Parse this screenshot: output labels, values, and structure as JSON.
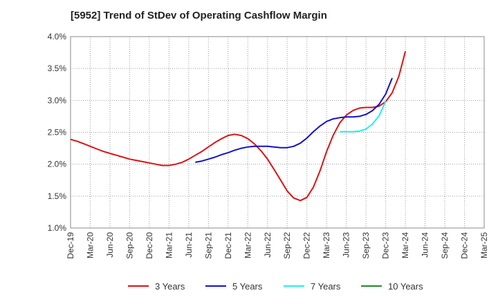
{
  "chart_data": {
    "type": "line",
    "title": "[5952]  Trend of StDev of Operating Cashflow Margin",
    "xlabel": "",
    "ylabel": "",
    "x_categories": [
      "Dec-19",
      "Mar-20",
      "Jun-20",
      "Sep-20",
      "Dec-20",
      "Mar-21",
      "Jun-21",
      "Sep-21",
      "Dec-21",
      "Mar-22",
      "Jun-22",
      "Sep-22",
      "Dec-22",
      "Mar-23",
      "Jun-23",
      "Sep-23",
      "Dec-23",
      "Mar-24",
      "Jun-24",
      "Sep-24",
      "Dec-24",
      "Mar-25"
    ],
    "ylim": [
      1.0,
      4.0
    ],
    "y_ticks": [
      1.0,
      1.5,
      2.0,
      2.5,
      3.0,
      3.5,
      4.0
    ],
    "y_tick_labels": [
      "1.0%",
      "1.5%",
      "2.0%",
      "2.5%",
      "3.0%",
      "3.5%",
      "4.0%"
    ],
    "grid": true,
    "legend_position": "bottom",
    "series": [
      {
        "name": "3 Years",
        "color": "#dd1111",
        "points": [
          [
            0,
            2.39
          ],
          [
            0.33,
            2.36
          ],
          [
            0.67,
            2.32
          ],
          [
            1,
            2.28
          ],
          [
            1.33,
            2.24
          ],
          [
            1.67,
            2.2
          ],
          [
            2,
            2.17
          ],
          [
            2.33,
            2.14
          ],
          [
            2.67,
            2.11
          ],
          [
            3,
            2.08
          ],
          [
            3.33,
            2.06
          ],
          [
            3.67,
            2.04
          ],
          [
            4,
            2.02
          ],
          [
            4.33,
            2.0
          ],
          [
            4.67,
            1.98
          ],
          [
            5,
            1.98
          ],
          [
            5.33,
            2.0
          ],
          [
            5.67,
            2.03
          ],
          [
            6,
            2.08
          ],
          [
            6.33,
            2.14
          ],
          [
            6.67,
            2.2
          ],
          [
            7,
            2.27
          ],
          [
            7.33,
            2.34
          ],
          [
            7.67,
            2.4
          ],
          [
            8,
            2.45
          ],
          [
            8.33,
            2.47
          ],
          [
            8.67,
            2.45
          ],
          [
            9,
            2.4
          ],
          [
            9.33,
            2.32
          ],
          [
            9.67,
            2.21
          ],
          [
            10,
            2.08
          ],
          [
            10.33,
            1.92
          ],
          [
            10.67,
            1.75
          ],
          [
            11,
            1.58
          ],
          [
            11.33,
            1.47
          ],
          [
            11.67,
            1.43
          ],
          [
            12,
            1.48
          ],
          [
            12.33,
            1.64
          ],
          [
            12.67,
            1.9
          ],
          [
            13,
            2.2
          ],
          [
            13.33,
            2.45
          ],
          [
            13.67,
            2.65
          ],
          [
            14,
            2.77
          ],
          [
            14.33,
            2.84
          ],
          [
            14.67,
            2.88
          ],
          [
            15,
            2.89
          ],
          [
            15.33,
            2.89
          ],
          [
            15.67,
            2.91
          ],
          [
            16,
            2.98
          ],
          [
            16.33,
            3.12
          ],
          [
            16.67,
            3.38
          ],
          [
            17,
            3.77
          ]
        ]
      },
      {
        "name": "5 Years",
        "color": "#1111cc",
        "points": [
          [
            6.33,
            2.03
          ],
          [
            6.67,
            2.05
          ],
          [
            7,
            2.08
          ],
          [
            7.33,
            2.11
          ],
          [
            7.67,
            2.15
          ],
          [
            8,
            2.18
          ],
          [
            8.33,
            2.22
          ],
          [
            8.67,
            2.25
          ],
          [
            9,
            2.27
          ],
          [
            9.33,
            2.28
          ],
          [
            9.67,
            2.28
          ],
          [
            10,
            2.28
          ],
          [
            10.33,
            2.27
          ],
          [
            10.67,
            2.26
          ],
          [
            11,
            2.26
          ],
          [
            11.33,
            2.28
          ],
          [
            11.67,
            2.33
          ],
          [
            12,
            2.41
          ],
          [
            12.33,
            2.51
          ],
          [
            12.67,
            2.6
          ],
          [
            13,
            2.67
          ],
          [
            13.33,
            2.71
          ],
          [
            13.67,
            2.73
          ],
          [
            14,
            2.74
          ],
          [
            14.33,
            2.74
          ],
          [
            14.67,
            2.75
          ],
          [
            15,
            2.78
          ],
          [
            15.33,
            2.84
          ],
          [
            15.67,
            2.94
          ],
          [
            16,
            3.1
          ],
          [
            16.33,
            3.35
          ]
        ]
      },
      {
        "name": "7 Years",
        "color": "#22eeee",
        "points": [
          [
            13.67,
            2.51
          ],
          [
            14,
            2.51
          ],
          [
            14.33,
            2.51
          ],
          [
            14.67,
            2.52
          ],
          [
            15,
            2.55
          ],
          [
            15.33,
            2.63
          ],
          [
            15.67,
            2.76
          ],
          [
            16,
            2.99
          ]
        ]
      },
      {
        "name": "10 Years",
        "color": "#228822",
        "points": []
      }
    ]
  }
}
